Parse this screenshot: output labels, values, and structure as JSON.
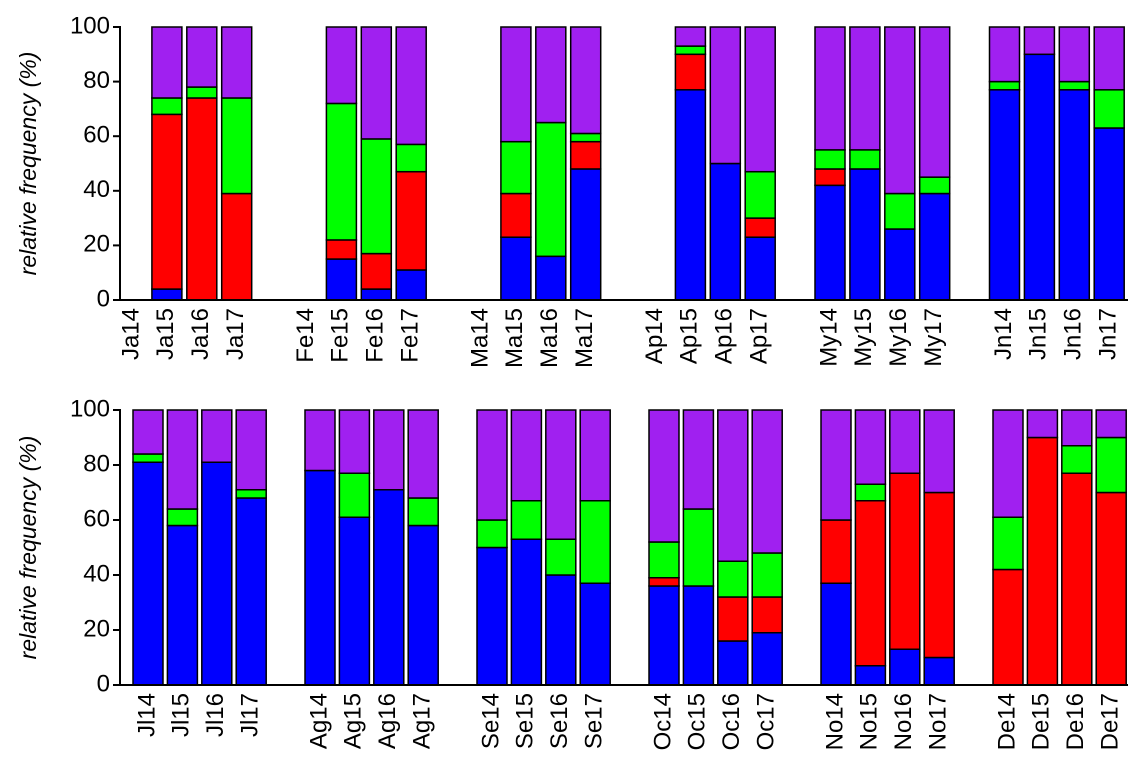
{
  "chart_data": [
    {
      "type": "stacked_bar",
      "y_label": "relative frequency (%)",
      "categories": [
        "Ja14",
        "Ja15",
        "Ja16",
        "Ja17",
        null,
        "Fe14",
        "Fe15",
        "Fe16",
        "Fe17",
        null,
        "Ma14",
        "Ma15",
        "Ma16",
        "Ma17",
        null,
        "Ap14",
        "Ap15",
        "Ap16",
        "Ap17",
        null,
        "My14",
        "My15",
        "My16",
        "My17",
        null,
        "Jn14",
        "Jn15",
        "Jn16",
        "Jn17"
      ],
      "series": [
        {
          "color": "#0000ff",
          "values": [
            null,
            4,
            0,
            0,
            null,
            null,
            15,
            4,
            11,
            null,
            null,
            23,
            16,
            48,
            null,
            null,
            77,
            50,
            23,
            null,
            42,
            48,
            26,
            39,
            null,
            77,
            90,
            77,
            63
          ]
        },
        {
          "color": "#ff0000",
          "values": [
            null,
            64,
            74,
            39,
            null,
            null,
            7,
            13,
            36,
            null,
            null,
            16,
            0,
            10,
            null,
            null,
            13,
            0,
            7,
            null,
            6,
            0,
            0,
            0,
            null,
            0,
            0,
            0,
            0
          ]
        },
        {
          "color": "#00ff00",
          "values": [
            null,
            6,
            4,
            35,
            null,
            null,
            50,
            42,
            10,
            null,
            null,
            19,
            49,
            3,
            null,
            null,
            3,
            0,
            17,
            null,
            7,
            7,
            13,
            6,
            null,
            3,
            0,
            3,
            14
          ]
        },
        {
          "color": "#a020f0",
          "values": [
            null,
            26,
            22,
            26,
            null,
            null,
            28,
            41,
            43,
            null,
            null,
            42,
            35,
            39,
            null,
            null,
            7,
            50,
            53,
            null,
            45,
            45,
            61,
            55,
            null,
            20,
            10,
            20,
            23
          ]
        }
      ],
      "ylim": [
        0,
        100
      ],
      "yticks": [
        0,
        20,
        40,
        60,
        80,
        100
      ]
    },
    {
      "type": "stacked_bar",
      "y_label": "relative frequency (%)",
      "categories": [
        "Jl14",
        "Jl15",
        "Jl16",
        "Jl17",
        null,
        "Ag14",
        "Ag15",
        "Ag16",
        "Ag17",
        null,
        "Se14",
        "Se15",
        "Se16",
        "Se17",
        null,
        "Oc14",
        "Oc15",
        "Oc16",
        "Oc17",
        null,
        "No14",
        "No15",
        "No16",
        "No17",
        null,
        "De14",
        "De15",
        "De16",
        "De17"
      ],
      "series": [
        {
          "color": "#0000ff",
          "values": [
            81,
            58,
            81,
            68,
            null,
            78,
            61,
            71,
            58,
            null,
            50,
            53,
            40,
            37,
            null,
            36,
            36,
            16,
            19,
            null,
            37,
            7,
            13,
            10,
            null,
            0,
            0,
            0,
            0
          ]
        },
        {
          "color": "#ff0000",
          "values": [
            0,
            0,
            0,
            0,
            null,
            0,
            0,
            0,
            0,
            null,
            0,
            0,
            0,
            0,
            null,
            3,
            0,
            16,
            13,
            null,
            23,
            60,
            64,
            60,
            null,
            42,
            90,
            77,
            70
          ]
        },
        {
          "color": "#00ff00",
          "values": [
            3,
            6,
            0,
            3,
            null,
            0,
            16,
            0,
            10,
            null,
            10,
            14,
            13,
            30,
            null,
            13,
            28,
            13,
            16,
            null,
            0,
            6,
            0,
            0,
            null,
            19,
            0,
            10,
            20
          ]
        },
        {
          "color": "#a020f0",
          "values": [
            16,
            36,
            19,
            29,
            null,
            22,
            23,
            29,
            32,
            null,
            40,
            33,
            47,
            33,
            null,
            48,
            36,
            55,
            52,
            null,
            40,
            27,
            23,
            30,
            null,
            39,
            10,
            13,
            10
          ]
        }
      ],
      "ylim": [
        0,
        100
      ],
      "yticks": [
        0,
        20,
        40,
        60,
        80,
        100
      ]
    }
  ]
}
